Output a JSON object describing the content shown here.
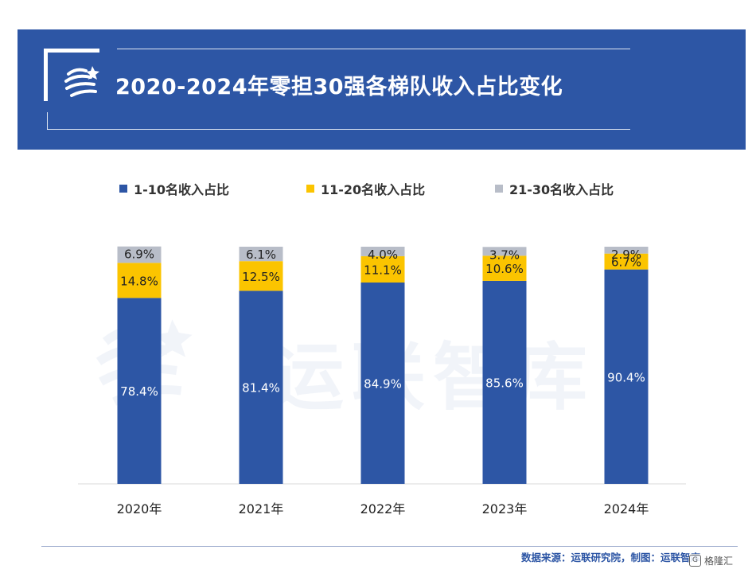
{
  "header": {
    "title": "2020-2024年零担30强各梯队收入占比变化"
  },
  "colors": {
    "banner": "#2d56a5",
    "series": [
      "#2d56a5",
      "#fbc400",
      "#b8bdc8"
    ]
  },
  "chart_data": {
    "type": "bar",
    "stacked": true,
    "percent": true,
    "title": "2020-2024年零担30强各梯队收入占比变化",
    "categories": [
      "2020年",
      "2021年",
      "2022年",
      "2023年",
      "2024年"
    ],
    "series": [
      {
        "name": "1-10名收入占比",
        "values": [
          78.4,
          81.4,
          84.9,
          85.6,
          90.4
        ],
        "labels": [
          "78.4%",
          "81.4%",
          "84.9%",
          "85.6%",
          "90.4%"
        ],
        "color": "#2d56a5"
      },
      {
        "name": "11-20名收入占比",
        "values": [
          14.8,
          12.5,
          11.1,
          10.6,
          6.7
        ],
        "labels": [
          "14.8%",
          "12.5%",
          "11.1%",
          "10.6%",
          "6.7%"
        ],
        "color": "#fbc400"
      },
      {
        "name": "21-30名收入占比",
        "values": [
          6.9,
          6.1,
          4.0,
          3.7,
          2.9
        ],
        "labels": [
          "6.9%",
          "6.1%",
          "4.0%",
          "3.7%",
          "2.9%"
        ],
        "color": "#b8bdc8"
      }
    ],
    "ylim": [
      0,
      100
    ],
    "legend_position": "top",
    "grid": false
  },
  "watermark": {
    "text": "运联智库"
  },
  "footer": {
    "source": "数据来源：运联研究院，制图：运联智库",
    "corner_brand": "格隆汇"
  }
}
